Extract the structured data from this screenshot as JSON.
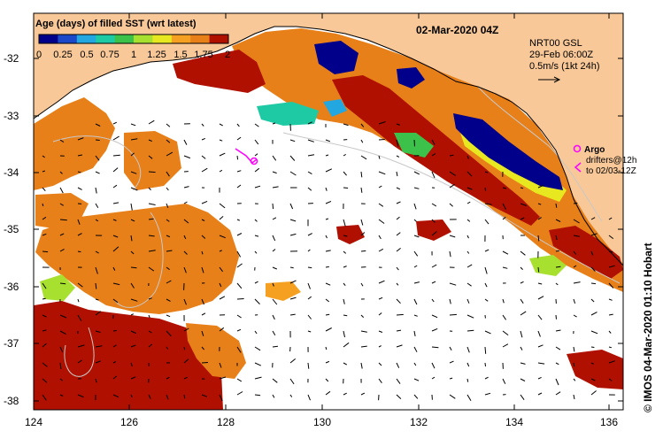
{
  "map": {
    "date_title": "02-Mar-2020 04Z",
    "legend": {
      "title": "Age (days) of filled SST (wrt latest)",
      "labels": [
        "0",
        "0.25",
        "0.5",
        "0.75",
        "1",
        "1.25",
        "1.5",
        "1.75",
        "2"
      ],
      "colors": [
        "#00008b",
        "#1a48c8",
        "#22a7e0",
        "#1ecaa4",
        "#3cc24a",
        "#a8e030",
        "#e8e820",
        "#f5a020",
        "#e8801a",
        "#b01000"
      ]
    },
    "info": {
      "line1": "NRT00 GSL",
      "line2": "29-Feb 06:00Z",
      "line3": "0.5m/s (1kt 24h)"
    },
    "argo": {
      "label": "Argo",
      "drifters_line1": "drifters@12h",
      "drifters_line2": "to 02/03-12Z"
    },
    "credit": "© IMOS 04-Mar-2020 01:10 Hobart",
    "axes": {
      "lon_ticks": [
        "124",
        "126",
        "128",
        "130",
        "132",
        "134",
        "136"
      ],
      "lat_ticks": [
        "-32",
        "-33",
        "-34",
        "-35",
        "-36",
        "-37",
        "-38"
      ]
    },
    "colors": {
      "land": "#f8c898",
      "no_data": "#ffffff",
      "argo_marker": "#ff00ff",
      "coast_line": "#000000",
      "contour": "#c8c8c8"
    }
  }
}
